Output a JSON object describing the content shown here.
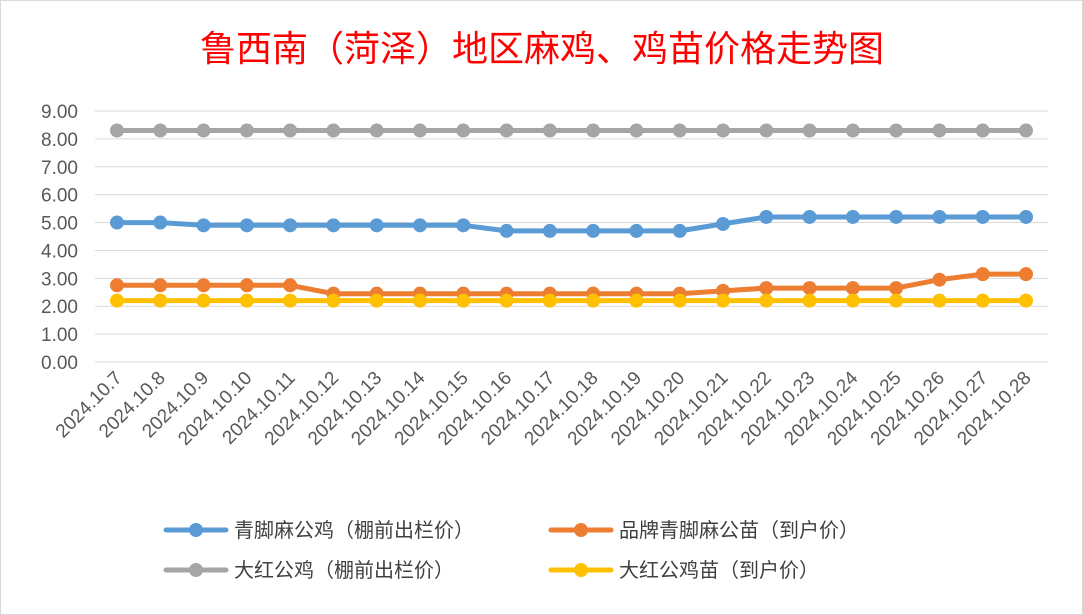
{
  "chart_data": {
    "type": "line",
    "title": "鲁西南（菏泽）地区麻鸡、鸡苗价格走势图",
    "xlabel": "",
    "ylabel": "",
    "ylim": [
      0,
      9
    ],
    "y_ticks": [
      "0.00",
      "1.00",
      "2.00",
      "3.00",
      "4.00",
      "5.00",
      "6.00",
      "7.00",
      "8.00",
      "9.00"
    ],
    "grid": true,
    "legend_position": "bottom",
    "categories": [
      "2024.10.7",
      "2024.10.8",
      "2024.10.9",
      "2024.10.10",
      "2024.10.11",
      "2024.10.12",
      "2024.10.13",
      "2024.10.14",
      "2024.10.15",
      "2024.10.16",
      "2024.10.17",
      "2024.10.18",
      "2024.10.19",
      "2024.10.20",
      "2024.10.21",
      "2024.10.22",
      "2024.10.23",
      "2024.10.24",
      "2024.10.25",
      "2024.10.26",
      "2024.10.27",
      "2024.10.28"
    ],
    "series": [
      {
        "name": "青脚麻公鸡（棚前出栏价）",
        "color": "#5b9bd5",
        "values": [
          5.0,
          5.0,
          4.9,
          4.9,
          4.9,
          4.9,
          4.9,
          4.9,
          4.9,
          4.7,
          4.7,
          4.7,
          4.7,
          4.7,
          4.95,
          5.2,
          5.2,
          5.2,
          5.2,
          5.2,
          5.2,
          5.2
        ]
      },
      {
        "name": "品牌青脚麻公苗（到户价）",
        "color": "#ed7d31",
        "values": [
          2.75,
          2.75,
          2.75,
          2.75,
          2.75,
          2.45,
          2.45,
          2.45,
          2.45,
          2.45,
          2.45,
          2.45,
          2.45,
          2.45,
          2.55,
          2.65,
          2.65,
          2.65,
          2.65,
          2.95,
          3.15,
          3.15
        ]
      },
      {
        "name": "大红公鸡（棚前出栏价）",
        "color": "#a5a5a5",
        "values": [
          8.3,
          8.3,
          8.3,
          8.3,
          8.3,
          8.3,
          8.3,
          8.3,
          8.3,
          8.3,
          8.3,
          8.3,
          8.3,
          8.3,
          8.3,
          8.3,
          8.3,
          8.3,
          8.3,
          8.3,
          8.3,
          8.3
        ]
      },
      {
        "name": "大红公鸡苗（到户价）",
        "color": "#ffc000",
        "values": [
          2.2,
          2.2,
          2.2,
          2.2,
          2.2,
          2.2,
          2.2,
          2.2,
          2.2,
          2.2,
          2.2,
          2.2,
          2.2,
          2.2,
          2.2,
          2.2,
          2.2,
          2.2,
          2.2,
          2.2,
          2.2,
          2.2
        ]
      }
    ]
  }
}
